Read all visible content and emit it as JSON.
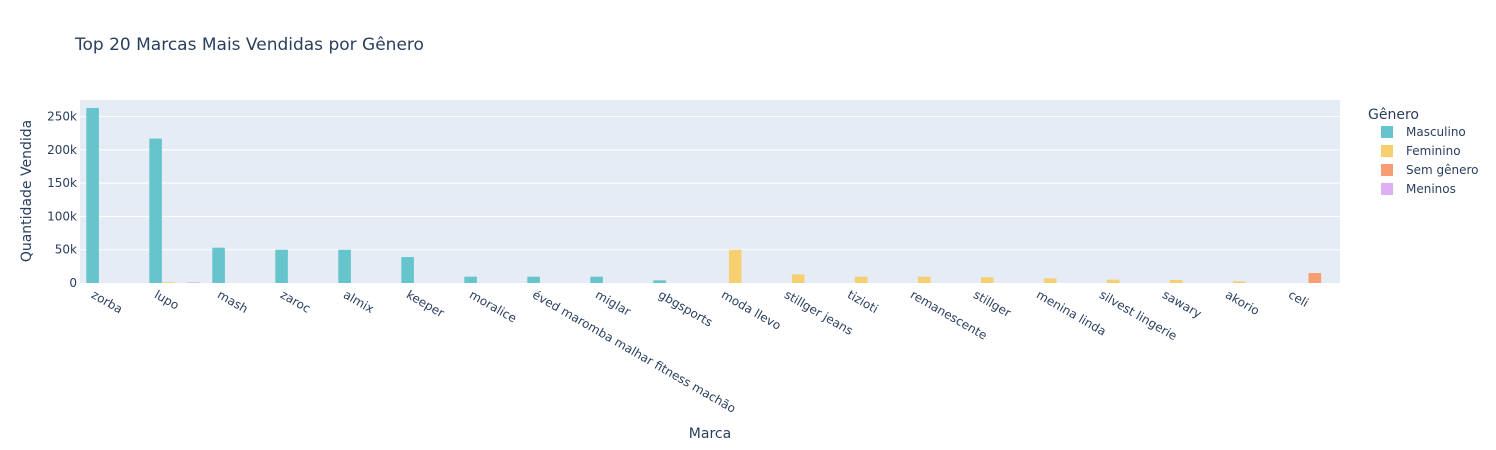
{
  "chart_data": {
    "type": "bar",
    "title": "Top 20 Marcas Mais Vendidas por Gênero",
    "xlabel": "Marca",
    "ylabel": "Quantidade Vendida",
    "ylim": [
      0,
      275000
    ],
    "yticks": [
      0,
      50000,
      100000,
      150000,
      200000,
      250000
    ],
    "ytick_labels": [
      "0",
      "50k",
      "100k",
      "150k",
      "200k",
      "250k"
    ],
    "grid": true,
    "legend_title": "Gênero",
    "legend_position": "right",
    "categories": [
      "zorba",
      "lupo",
      "mash",
      "zaroc",
      "almix",
      "keeper",
      "moralice",
      "éved maromba malhar fitness machão",
      "miglar",
      "gbgsports",
      "moda llevo",
      "stillger jeans",
      "tizioti",
      "remanescente",
      "stillger",
      "menina linda",
      "silvest lingerie",
      "sawary",
      "akorio",
      "celi"
    ],
    "series": [
      {
        "name": "Masculino",
        "color": "#66c5cc",
        "values": [
          263000,
          217000,
          53000,
          50000,
          50000,
          39000,
          9500,
          9500,
          9500,
          4000,
          0,
          0,
          0,
          0,
          0,
          0,
          0,
          0,
          0,
          0
        ]
      },
      {
        "name": "Feminino",
        "color": "#f6cf71",
        "values": [
          0,
          1200,
          0,
          0,
          0,
          0,
          0,
          0,
          0,
          0,
          50000,
          13000,
          9500,
          9500,
          8500,
          7000,
          5000,
          4500,
          2500,
          0
        ]
      },
      {
        "name": "Sem gênero",
        "color": "#f89c74",
        "values": [
          0,
          0,
          0,
          0,
          0,
          0,
          0,
          0,
          0,
          0,
          0,
          0,
          0,
          0,
          0,
          0,
          0,
          0,
          0,
          15000
        ]
      },
      {
        "name": "Meninos",
        "color": "#dcb0f2",
        "values": [
          0,
          1000,
          0,
          0,
          0,
          0,
          0,
          0,
          0,
          0,
          0,
          0,
          0,
          0,
          0,
          0,
          0,
          0,
          0,
          0
        ]
      }
    ]
  }
}
